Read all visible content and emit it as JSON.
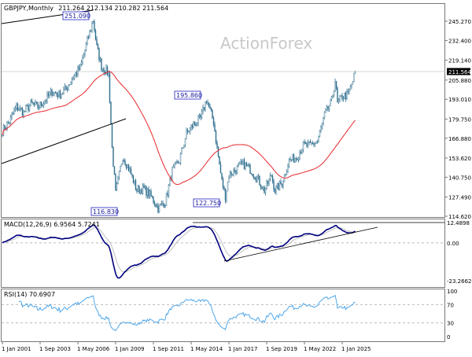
{
  "header": {
    "symbol_label": "GBPJPY,Monthly",
    "ohlc_label": "211.264 212.134 210.282 211.564",
    "watermark": "ActionForex"
  },
  "chart_data": [
    {
      "type": "candlestick",
      "title": "GBPJPY,Monthly",
      "ohlc_last": {
        "open": 211.264,
        "high": 212.134,
        "low": 210.282,
        "close": 211.564
      },
      "current_price": "211.564",
      "y_ticks": [
        "245.270",
        "232.400",
        "219.140",
        "205.880",
        "193.010",
        "179.750",
        "166.880",
        "153.620",
        "140.750",
        "127.490",
        "114.620"
      ],
      "ylim": [
        114.62,
        245.27
      ],
      "x_ticks": [
        "1 Jan 2001",
        "1 Sep 2003",
        "1 May 2006",
        "1 Jan 2009",
        "1 Sep 2011",
        "1 May 2014",
        "1 Jan 2017",
        "1 Sep 2019",
        "1 May 2022",
        "1 Jan 2025"
      ],
      "approx_closes": [
        [
          "2001-01",
          172
        ],
        [
          "2001-07",
          178
        ],
        [
          "2002-01",
          188
        ],
        [
          "2002-07",
          184
        ],
        [
          "2003-01",
          190
        ],
        [
          "2003-07",
          188
        ],
        [
          "2004-01",
          192
        ],
        [
          "2004-07",
          198
        ],
        [
          "2005-01",
          196
        ],
        [
          "2005-07",
          200
        ],
        [
          "2006-01",
          208
        ],
        [
          "2006-07",
          214
        ],
        [
          "2007-01",
          232
        ],
        [
          "2007-06",
          246
        ],
        [
          "2007-09",
          228
        ],
        [
          "2008-01",
          215
        ],
        [
          "2008-07",
          210
        ],
        [
          "2008-10",
          160
        ],
        [
          "2009-01",
          130
        ],
        [
          "2009-07",
          155
        ],
        [
          "2010-01",
          145
        ],
        [
          "2010-07",
          132
        ],
        [
          "2011-01",
          133
        ],
        [
          "2011-07",
          128
        ],
        [
          "2012-01",
          120
        ],
        [
          "2012-07",
          124
        ],
        [
          "2013-01",
          145
        ],
        [
          "2013-07",
          152
        ],
        [
          "2014-01",
          170
        ],
        [
          "2014-07",
          176
        ],
        [
          "2015-01",
          180
        ],
        [
          "2015-06",
          193
        ],
        [
          "2015-12",
          178
        ],
        [
          "2016-03",
          160
        ],
        [
          "2016-07",
          138
        ],
        [
          "2016-10",
          128
        ],
        [
          "2017-01",
          142
        ],
        [
          "2017-07",
          146
        ],
        [
          "2018-01",
          150
        ],
        [
          "2018-07",
          146
        ],
        [
          "2019-01",
          140
        ],
        [
          "2019-07",
          132
        ],
        [
          "2020-01",
          142
        ],
        [
          "2020-04",
          132
        ],
        [
          "2020-10",
          137
        ],
        [
          "2021-04",
          152
        ],
        [
          "2021-10",
          154
        ],
        [
          "2022-04",
          162
        ],
        [
          "2022-10",
          162
        ],
        [
          "2023-04",
          165
        ],
        [
          "2023-10",
          182
        ],
        [
          "2024-04",
          192
        ],
        [
          "2024-07",
          206
        ],
        [
          "2024-09",
          190
        ],
        [
          "2025-01",
          195
        ],
        [
          "2025-06",
          196
        ],
        [
          "2025-10",
          205
        ],
        [
          "2025-12",
          211.564
        ]
      ],
      "moving_average_color": "#e8262b",
      "candle_color": "#2e6e8e",
      "annotations": [
        "251.090",
        "195.860",
        "116.830",
        "122.750"
      ]
    },
    {
      "type": "line",
      "title": "MACD(12,26,9) 6.9564 5.7241",
      "y_ticks": [
        "12.4898",
        "0.00",
        "-23.2662"
      ],
      "ylim": [
        -23.2662,
        12.4898
      ],
      "macd_color": "#00007f",
      "signal_color": "#c0c0c0"
    },
    {
      "type": "line",
      "title": "RSI(14) 70.6907",
      "y_ticks": [
        "100",
        "70",
        "30",
        "0"
      ],
      "ylim": [
        0,
        100
      ],
      "line_color": "#3c9ee8"
    }
  ]
}
